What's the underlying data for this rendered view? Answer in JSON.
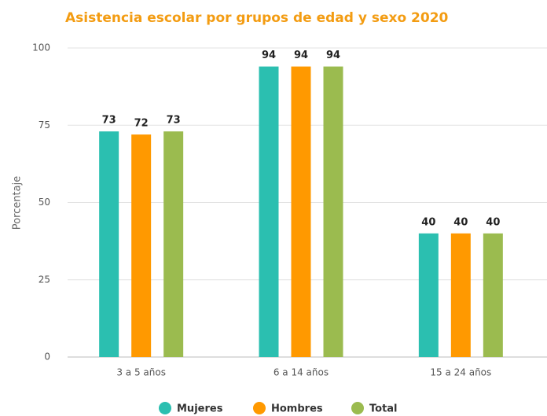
{
  "chart_data": {
    "type": "bar",
    "title": "Asistencia escolar por grupos de edad y sexo 2020",
    "y_label": "Porcentaje",
    "categories": [
      "3 a 5 años",
      "6 a 14 años",
      "15 a 24 años"
    ],
    "series": [
      {
        "name": "Mujeres",
        "color": "#2bbfb0",
        "values": [
          73,
          94,
          40
        ]
      },
      {
        "name": "Hombres",
        "color": "#ff9900",
        "values": [
          72,
          94,
          40
        ]
      },
      {
        "name": "Total",
        "color": "#9bbb4f",
        "values": [
          73,
          94,
          40
        ]
      }
    ],
    "ylim": [
      0,
      100
    ],
    "yticks": [
      0,
      25,
      50,
      75,
      100
    ],
    "grid": true,
    "legend": "bottom"
  }
}
